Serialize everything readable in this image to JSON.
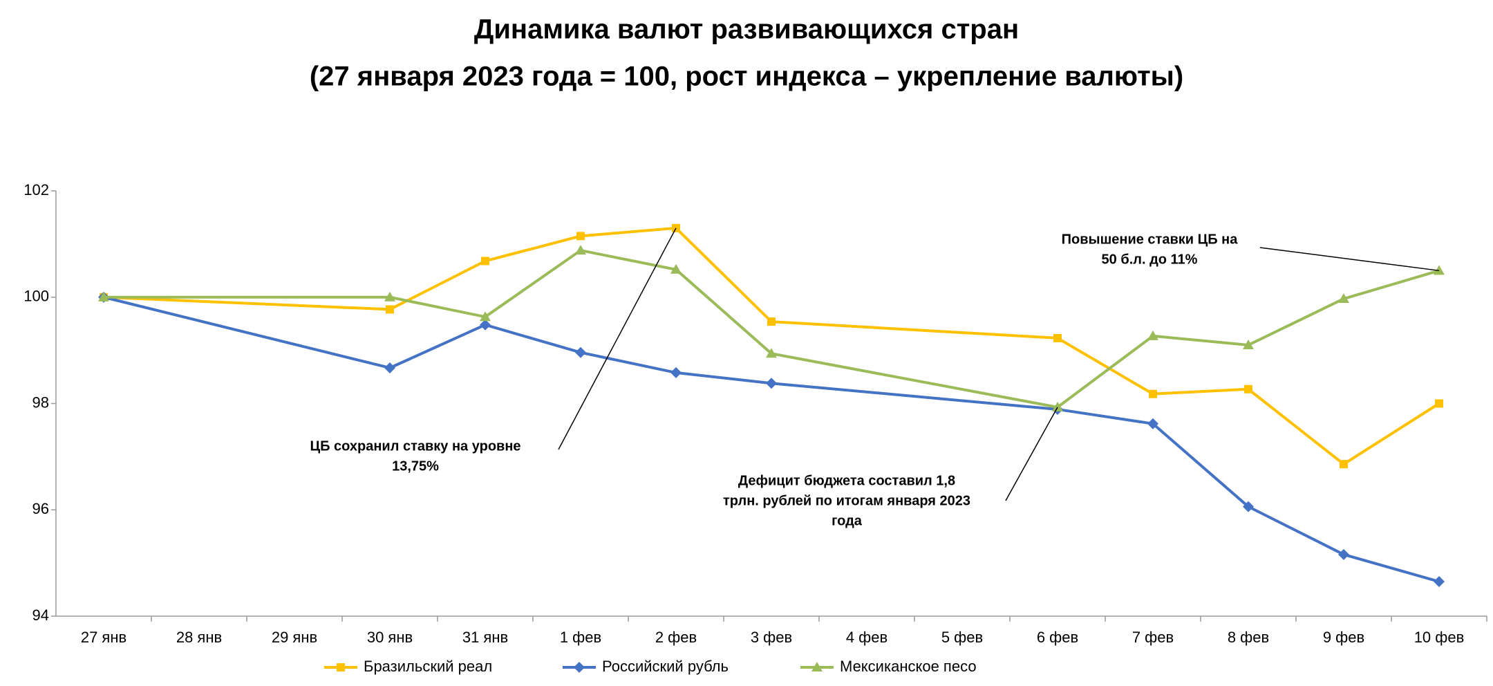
{
  "chart_data": {
    "type": "line",
    "title": "Динамика валют развивающихся стран",
    "subtitle": "(27 января 2023 года = 100, рост индекса – укрепление валюты)",
    "categories": [
      "27 янв",
      "28 янв",
      "29 янв",
      "30 янв",
      "31 янв",
      "1 фев",
      "2 фев",
      "3 фев",
      "4 фев",
      "5 фев",
      "6 фев",
      "7 фев",
      "8 фев",
      "9 фев",
      "10 фев"
    ],
    "series": [
      {
        "name": "Бразильский реал",
        "color": "#ffc000",
        "marker": "square",
        "values": [
          100.0,
          null,
          null,
          99.77,
          100.68,
          101.15,
          101.3,
          99.54,
          null,
          null,
          99.23,
          98.18,
          98.27,
          96.86,
          98.0
        ]
      },
      {
        "name": "Российский рубль",
        "color": "#4472c4",
        "marker": "diamond",
        "values": [
          100.0,
          null,
          null,
          98.67,
          99.48,
          98.96,
          98.58,
          98.38,
          null,
          null,
          97.89,
          97.62,
          96.06,
          95.16,
          94.65
        ]
      },
      {
        "name": "Мексиканское песо",
        "color": "#9bbb59",
        "marker": "triangle",
        "values": [
          100.0,
          null,
          null,
          100.0,
          99.63,
          100.88,
          100.52,
          98.94,
          null,
          null,
          97.93,
          99.27,
          99.1,
          99.97,
          100.5
        ]
      }
    ],
    "ylim": [
      94,
      102
    ],
    "yticks": [
      94,
      96,
      98,
      100,
      102
    ],
    "grid": false,
    "legend": "bottom",
    "annotations": [
      {
        "lines": [
          "ЦБ сохранил ставку на уровне",
          "13,75%"
        ]
      },
      {
        "lines": [
          "Дефицит бюджета составил 1,8",
          "трлн. рублей по итогам января 2023",
          "года"
        ]
      },
      {
        "lines": [
          "Повышение ставки ЦБ на",
          "50 б.л. до 11%"
        ]
      }
    ]
  }
}
